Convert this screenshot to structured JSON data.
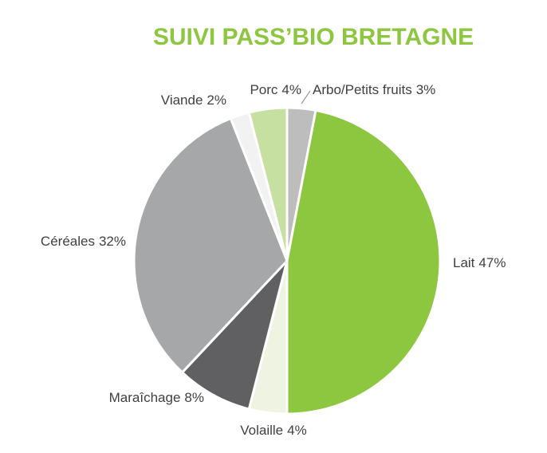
{
  "chart_data": {
    "type": "pie",
    "title": "SUIVI PASS’BIO BRETAGNE",
    "categories": [
      "Arbo/Petits fruits",
      "Lait",
      "Volaille",
      "Maraîchage",
      "Céréales",
      "Viande",
      "Porc"
    ],
    "values": [
      3,
      47,
      4,
      8,
      32,
      2,
      4
    ],
    "value_labels": [
      "3%",
      "47%",
      "4%",
      "8%",
      "32%",
      "2%",
      "4%"
    ],
    "colors": [
      "#bdbdbd",
      "#8dc63f",
      "#eef3e2",
      "#606062",
      "#a6a7a9",
      "#f2f2f2",
      "#c5e0a0"
    ]
  }
}
